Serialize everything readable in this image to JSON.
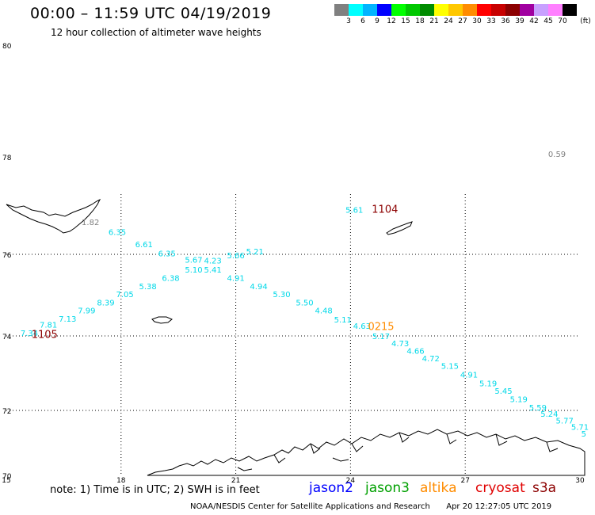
{
  "header": {
    "title": "00:00 – 11:59 UTC 04/19/2019",
    "subtitle": "12 hour collection of altimeter wave heights"
  },
  "legend": {
    "unit": "(ft)",
    "swatches": [
      {
        "label": "3",
        "color": "#808080"
      },
      {
        "label": "6",
        "color": "#00ffff"
      },
      {
        "label": "9",
        "color": "#00b4ff"
      },
      {
        "label": "12",
        "color": "#0000ff"
      },
      {
        "label": "15",
        "color": "#00ff00"
      },
      {
        "label": "18",
        "color": "#00c800"
      },
      {
        "label": "21",
        "color": "#008c00"
      },
      {
        "label": "24",
        "color": "#ffff00"
      },
      {
        "label": "27",
        "color": "#ffc800"
      },
      {
        "label": "30",
        "color": "#ff8c00"
      },
      {
        "label": "33",
        "color": "#ff0000"
      },
      {
        "label": "36",
        "color": "#c80000"
      },
      {
        "label": "39",
        "color": "#8c0000"
      },
      {
        "label": "42",
        "color": "#a000a0"
      },
      {
        "label": "45",
        "color": "#c8a0ff"
      },
      {
        "label": "70",
        "color": "#ff80ff"
      },
      {
        "label": "",
        "color": "#000000"
      }
    ]
  },
  "axes": {
    "lat_labels": [
      "80",
      "78",
      "76",
      "74",
      "72",
      "70"
    ],
    "lat_values": [
      80,
      78,
      76,
      74,
      72,
      70
    ],
    "lon_labels": [
      "15",
      "18",
      "21",
      "24",
      "27",
      "30"
    ],
    "lon_values": [
      15,
      18,
      21,
      24,
      27,
      30
    ],
    "gridlines": "dotted"
  },
  "observations": {
    "color_cyan": "#00d8e8",
    "color_gray": "#808080",
    "top_right_value": {
      "text": "0.59",
      "lon": 29.4,
      "lat": 78.0
    },
    "gray_value": {
      "text": "1.82",
      "lon": 17.2,
      "lat": 76.6
    },
    "points": [
      {
        "text": "7.34",
        "lon": 15.6,
        "lat": 74.0
      },
      {
        "text": "7.81",
        "lon": 16.1,
        "lat": 74.2
      },
      {
        "text": "7.13",
        "lon": 16.6,
        "lat": 74.35
      },
      {
        "text": "7.99",
        "lon": 17.1,
        "lat": 74.55
      },
      {
        "text": "8.39",
        "lon": 17.6,
        "lat": 74.75
      },
      {
        "text": "7.05",
        "lon": 18.1,
        "lat": 74.95
      },
      {
        "text": "5.38",
        "lon": 18.7,
        "lat": 75.15
      },
      {
        "text": "6.38",
        "lon": 19.3,
        "lat": 75.35
      },
      {
        "text": "5.10",
        "lon": 19.9,
        "lat": 75.55
      },
      {
        "text": "5.41",
        "lon": 20.4,
        "lat": 75.55
      },
      {
        "text": "5.67",
        "lon": 19.9,
        "lat": 75.8
      },
      {
        "text": "4.23",
        "lon": 20.4,
        "lat": 75.78
      },
      {
        "text": "6.35",
        "lon": 17.9,
        "lat": 76.4
      },
      {
        "text": "6.61",
        "lon": 18.6,
        "lat": 76.15
      },
      {
        "text": "6.35",
        "lon": 19.2,
        "lat": 75.95
      },
      {
        "text": "5.66",
        "lon": 21.0,
        "lat": 75.9
      },
      {
        "text": "5.21",
        "lon": 21.5,
        "lat": 76.0
      },
      {
        "text": "4.91",
        "lon": 21.0,
        "lat": 75.35
      },
      {
        "text": "4.94",
        "lon": 21.6,
        "lat": 75.15
      },
      {
        "text": "5.30",
        "lon": 22.2,
        "lat": 74.95
      },
      {
        "text": "5.50",
        "lon": 22.8,
        "lat": 74.75
      },
      {
        "text": "4.48",
        "lon": 23.3,
        "lat": 74.55
      },
      {
        "text": "5.11",
        "lon": 23.8,
        "lat": 74.33
      },
      {
        "text": "4.63",
        "lon": 24.3,
        "lat": 74.17
      },
      {
        "text": "5.17",
        "lon": 24.8,
        "lat": 73.92
      },
      {
        "text": "4.73",
        "lon": 25.3,
        "lat": 73.72
      },
      {
        "text": "4.66",
        "lon": 25.7,
        "lat": 73.52
      },
      {
        "text": "4.72",
        "lon": 26.1,
        "lat": 73.32
      },
      {
        "text": "5.15",
        "lon": 26.6,
        "lat": 73.12
      },
      {
        "text": "4.91",
        "lon": 27.1,
        "lat": 72.88
      },
      {
        "text": "5.19",
        "lon": 27.6,
        "lat": 72.65
      },
      {
        "text": "5.45",
        "lon": 28.0,
        "lat": 72.45
      },
      {
        "text": "5.19",
        "lon": 28.4,
        "lat": 72.22
      },
      {
        "text": "5.59",
        "lon": 28.9,
        "lat": 72.0
      },
      {
        "text": "5.24",
        "lon": 29.2,
        "lat": 71.8
      },
      {
        "text": "5.77",
        "lon": 29.6,
        "lat": 71.6
      },
      {
        "text": "5.71",
        "lon": 30.0,
        "lat": 71.4
      },
      {
        "text": "5",
        "lon": 30.1,
        "lat": 71.2
      },
      {
        "text": "5.61",
        "lon": 24.1,
        "lat": 76.85
      }
    ],
    "time_labels": [
      {
        "text": "1105",
        "lon": 16.0,
        "lat": 73.95,
        "color": "#8c0000"
      },
      {
        "text": "1104",
        "lon": 24.9,
        "lat": 76.85,
        "color": "#8c0000"
      },
      {
        "text": "0215",
        "lon": 24.8,
        "lat": 74.15,
        "color": "#ff8c00"
      }
    ]
  },
  "footer": {
    "note": "note:  1) Time is in UTC;  2) SWH is in feet",
    "satellites": [
      {
        "name": "jason2",
        "color": "#0000ff"
      },
      {
        "name": "jason3",
        "color": "#00a000"
      },
      {
        "name": "altika",
        "color": "#ff8c00"
      },
      {
        "name": "cryosat",
        "color": "#e00000"
      },
      {
        "name": "s3a",
        "color": "#8c0000"
      }
    ],
    "credit": "NOAA/NESDIS Center for Satellite Applications and Research",
    "timestamp": "Apr 20 12:27:05 UTC 2019"
  }
}
